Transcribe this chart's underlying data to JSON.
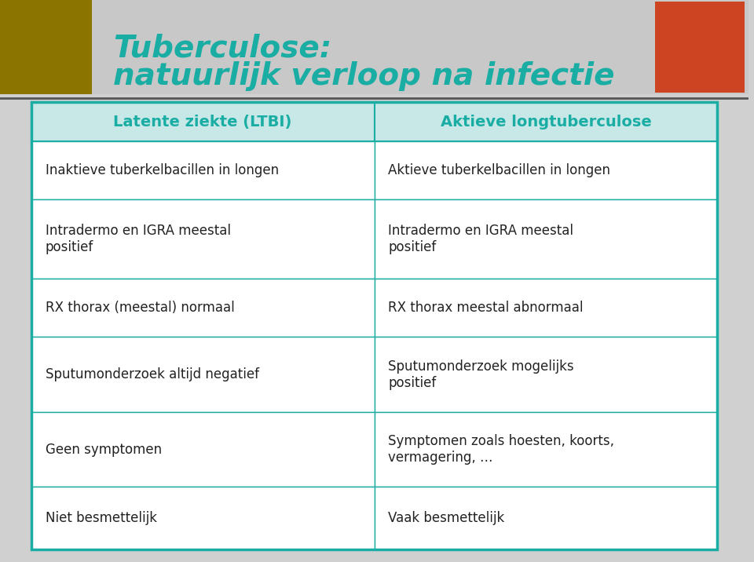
{
  "title_line1": "Tuberculose:",
  "title_line2": "natuurlijk verloop na infectie",
  "title_color": "#1aada4",
  "header_bg_color": "#c8e8e8",
  "header_text_color": "#1aada4",
  "header_left": "Latente ziekte (LTBI)",
  "header_right": "Aktieve longtuberculose",
  "bg_color": "#d0d0d0",
  "table_bg": "#f5f5f5",
  "header_banner_bg": "#c8c8c8",
  "rows": [
    [
      "Inaktieve tuberkelbacillen in longen",
      "Aktieve tuberkelbacillen in longen"
    ],
    [
      "Intradermo en IGRA meestal\npositief",
      "Intradermo en IGRA meestal\npositief"
    ],
    [
      "RX thorax (meestal) normaal",
      "RX thorax meestal abnormaal"
    ],
    [
      "Sputumonderzoek altijd negatief",
      "Sputumonderzoek mogelijks\npositief"
    ],
    [
      "Geen symptomen",
      "Symptomen zoals hoesten, koorts,\nvermagering, …"
    ],
    [
      "Niet besmettelijk",
      "Vaak besmettelijk"
    ]
  ],
  "cell_border_color": "#1aada4",
  "cell_text_color": "#222222",
  "font_size_title": 28,
  "font_size_header": 14,
  "font_size_cell": 12
}
